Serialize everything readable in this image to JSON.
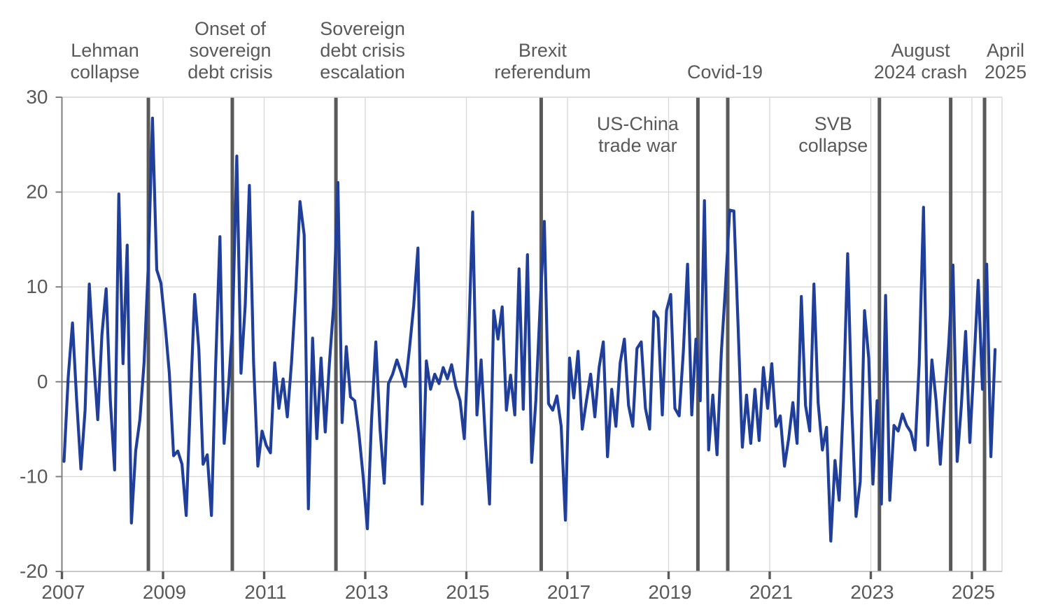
{
  "figure_title": "",
  "colors": {
    "line": "#203F9B",
    "event_line": "#595959",
    "grid": "#D9D9D9",
    "zero_line": "#7F7F7F",
    "spine": "#808080",
    "border": "#D9D9D9",
    "tick": "#595959",
    "text": "#595959",
    "background": "#FFFFFF"
  },
  "chart_data": {
    "type": "line",
    "title": "",
    "xlabel": "",
    "ylabel": "",
    "grid": "on",
    "frequency": "monthly",
    "start_year": 2007,
    "start_month": 1,
    "x_axis": {
      "tick_labels": [
        "2007",
        "2009",
        "2011",
        "2013",
        "2015",
        "2017",
        "2019",
        "2021",
        "2023",
        "2025"
      ],
      "tick_years": [
        2007,
        2009,
        2011,
        2013,
        2015,
        2017,
        2019,
        2021,
        2023,
        2025
      ],
      "range_years": [
        2007.0,
        2025.6
      ]
    },
    "y_axis": {
      "tick_labels": [
        "30",
        "20",
        "10",
        "0",
        "-10",
        "-20"
      ],
      "tick_values": [
        30,
        20,
        10,
        0,
        -10,
        -20
      ],
      "ylim": [
        -20,
        30
      ]
    },
    "series": [
      {
        "name": "monthly-series",
        "color": "#203F9B",
        "values": [
          -8.4,
          0.5,
          6.2,
          -2,
          -9.2,
          -3,
          10.3,
          2.5,
          -4,
          5,
          9.8,
          -2,
          -9.3,
          19.8,
          1.9,
          14.4,
          -14.9,
          -7.3,
          -4,
          2,
          12.2,
          27.8,
          11.8,
          10.4,
          6,
          0.9,
          -7.8,
          -7.3,
          -8.7,
          -14.1,
          -2,
          9.2,
          3.4,
          -8.7,
          -7.7,
          -14.1,
          2,
          15.3,
          -6.5,
          -0.8,
          6,
          23.8,
          0.9,
          8,
          20.7,
          2,
          -8.9,
          -5.2,
          -6.7,
          -7.5,
          2,
          -2.8,
          0.3,
          -3.7,
          2,
          9.5,
          19,
          15.5,
          -13.4,
          4.6,
          -6,
          2.5,
          -5.3,
          2,
          8,
          21,
          -4.3,
          3.7,
          -1.6,
          -2,
          -5.5,
          -10,
          -15.5,
          -4,
          4.2,
          -5,
          -10.7,
          -0.2,
          0.8,
          2.3,
          1,
          -0.5,
          3.5,
          8,
          14.1,
          -12.9,
          2.2,
          -0.8,
          0.8,
          -0.2,
          1.5,
          0.3,
          1.8,
          -0.5,
          -2,
          -6,
          4,
          17.9,
          -3.5,
          2.3,
          -6,
          -12.9,
          7.5,
          4.5,
          7.9,
          -3,
          0.7,
          -3.5,
          11.9,
          -2.9,
          13.4,
          -8.5,
          -2,
          8,
          16.9,
          -2.3,
          -3,
          -1.5,
          -4.7,
          -14.6,
          2.5,
          -1.7,
          3.2,
          -5,
          -2,
          0.8,
          -3.7,
          1.5,
          4.2,
          -7.9,
          -0.8,
          -4.7,
          2,
          4.5,
          -2.5,
          -4.7,
          3.5,
          4.2,
          -2.8,
          -5,
          7.4,
          6.7,
          -3.5,
          7.5,
          9.2,
          -2.8,
          -3.6,
          3.2,
          12.4,
          -3.5,
          4.5,
          -2,
          19.1,
          -7.2,
          -1.4,
          -7.7,
          3,
          10,
          18.1,
          18,
          5.9,
          -6.9,
          -1.4,
          -6.5,
          -0.8,
          -6.2,
          1.5,
          -2.8,
          1.9,
          -4.7,
          -3.6,
          -8.9,
          -6,
          -2.2,
          -6.5,
          9,
          -2.5,
          -5.2,
          10.3,
          -2.2,
          -7.2,
          -4.8,
          -16.8,
          -8.3,
          -12.5,
          -2,
          13.5,
          -3,
          -14.2,
          -10.5,
          7.5,
          2.5,
          -10.8,
          -2,
          -12.9,
          9.1,
          -12.5,
          -4.6,
          -5.2,
          -3.4,
          -4.6,
          -5.3,
          -7.2,
          2,
          18.4,
          -6.7,
          2.3,
          -2,
          -8.7,
          -2,
          4,
          12.3,
          -8.4,
          -2.5,
          5.3,
          -6.4,
          2,
          10.7,
          -0.8,
          12.4,
          -7.9,
          3.4
        ]
      }
    ],
    "events": [
      {
        "name": "lehman-collapse",
        "label_lines": [
          "Lehman",
          "collapse"
        ],
        "year": 2008.71,
        "label_dx": -62,
        "placement": "top"
      },
      {
        "name": "sovereign-debt-crisis-onset",
        "label_lines": [
          "Onset of",
          "sovereign",
          "debt crisis"
        ],
        "year": 2010.37,
        "label_dx": -3,
        "placement": "top"
      },
      {
        "name": "sovereign-debt-crisis-escalation",
        "label_lines": [
          "Sovereign",
          "debt crisis",
          "escalation"
        ],
        "year": 2012.42,
        "label_dx": 38,
        "placement": "top"
      },
      {
        "name": "brexit-referendum",
        "label_lines": [
          "Brexit",
          "referendum"
        ],
        "year": 2016.48,
        "label_dx": 2,
        "placement": "top"
      },
      {
        "name": "us-china-trade-war",
        "label_lines": [
          "US-China",
          "trade war"
        ],
        "year": 2019.58,
        "label_dx": -86,
        "placement": "inside"
      },
      {
        "name": "covid-19",
        "label_lines": [
          "Covid-19"
        ],
        "year": 2020.17,
        "label_dx": -4,
        "placement": "top"
      },
      {
        "name": "svb-collapse",
        "label_lines": [
          "SVB",
          "collapse"
        ],
        "year": 2023.17,
        "label_dx": -66,
        "placement": "inside"
      },
      {
        "name": "august-2024-crash",
        "label_lines": [
          "August",
          "2024 crash"
        ],
        "year": 2024.58,
        "label_dx": -43,
        "placement": "top"
      },
      {
        "name": "april-2025",
        "label_lines": [
          "April",
          "2025"
        ],
        "year": 2025.25,
        "label_dx": 30,
        "placement": "top"
      }
    ]
  }
}
